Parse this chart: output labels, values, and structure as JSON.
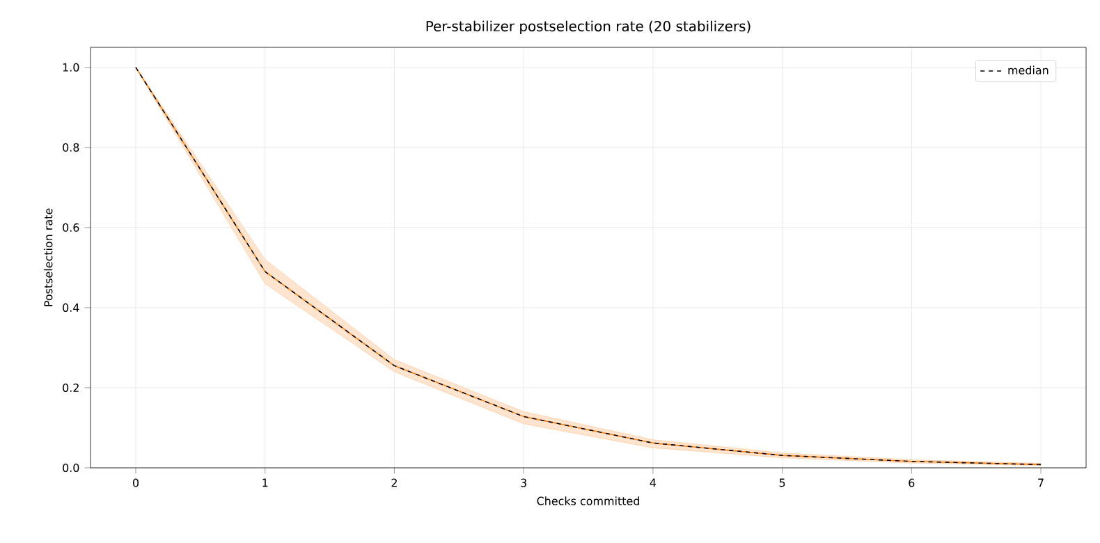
{
  "chart_data": {
    "type": "line",
    "title": "Per-stabilizer postselection rate (20 stabilizers)",
    "xlabel": "Checks committed",
    "ylabel": "Postselection rate",
    "x": [
      0,
      1,
      2,
      3,
      4,
      5,
      6,
      7
    ],
    "series": [
      {
        "color": "#ff7f0e",
        "values": [
          1.0,
          0.49,
          0.255,
          0.128,
          0.062,
          0.031,
          0.016,
          0.008
        ],
        "lower": [
          1.0,
          0.46,
          0.24,
          0.11,
          0.05,
          0.025,
          0.012,
          0.006
        ],
        "upper": [
          1.0,
          0.52,
          0.27,
          0.14,
          0.07,
          0.037,
          0.02,
          0.011
        ]
      },
      {
        "name": "median",
        "color": "#000000",
        "line_style": "dashed",
        "values": [
          1.0,
          0.49,
          0.255,
          0.128,
          0.062,
          0.031,
          0.016,
          0.008
        ]
      }
    ],
    "xlim": [
      -0.35,
      7.35
    ],
    "ylim": [
      0,
      1.05
    ],
    "xticks": [
      0,
      1,
      2,
      3,
      4,
      5,
      6,
      7
    ],
    "yticks": [
      {
        "value": 0,
        "label": "0.0"
      },
      0.2,
      0.4,
      0.6,
      0.8,
      {
        "value": 1,
        "label": "1.0"
      }
    ],
    "grid": true,
    "legend": "top right",
    "marker": "none"
  }
}
